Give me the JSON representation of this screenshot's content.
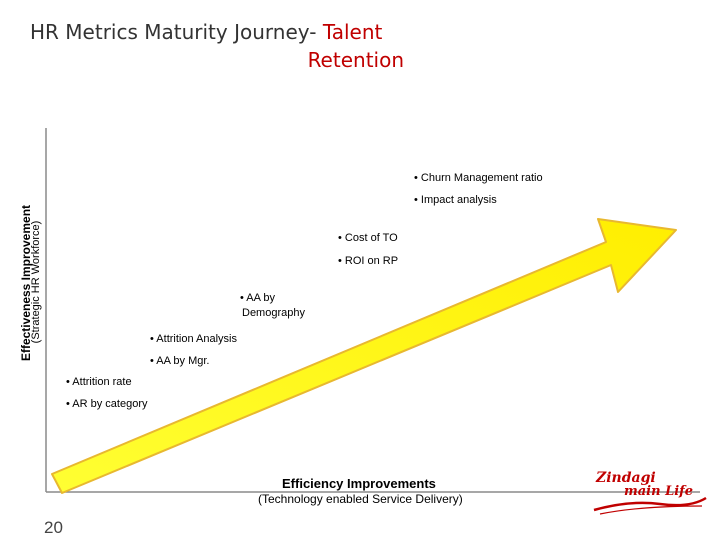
{
  "title": {
    "part1": "HR Metrics Maturity Journey- ",
    "part2": "Talent",
    "part3": "Retention"
  },
  "y_axis": {
    "title": "Effectiveness Improvement",
    "subtitle": "(Strategic HR Workforce)"
  },
  "x_axis": {
    "title": "Efficiency Improvements",
    "subtitle": "(Technology enabled Service Delivery)"
  },
  "stages": [
    {
      "id": "attrition-rate",
      "text": "• Attrition rate"
    },
    {
      "id": "ar-by-category",
      "text": "• AR by category"
    },
    {
      "id": "attrition-analysis",
      "text": "• Attrition Analysis"
    },
    {
      "id": "aa-by-mgr",
      "text": "• AA by Mgr."
    },
    {
      "id": "aa-by-demography-1",
      "text": "• AA by"
    },
    {
      "id": "aa-by-demography-2",
      "text": "Demography"
    },
    {
      "id": "cost-of-to",
      "text": "• Cost of TO"
    },
    {
      "id": "roi-on-rp",
      "text": "• ROI on RP"
    },
    {
      "id": "churn-management",
      "text": "• Churn Management ratio"
    },
    {
      "id": "impact-analysis",
      "text": "• Impact analysis"
    }
  ],
  "page_number": "20",
  "logo": {
    "line1": "Zindagi",
    "line2": "main Life"
  },
  "colors": {
    "arrow_fill": "#ffff00",
    "arrow_stroke": "#e8b830",
    "title_accent": "#c00000"
  }
}
